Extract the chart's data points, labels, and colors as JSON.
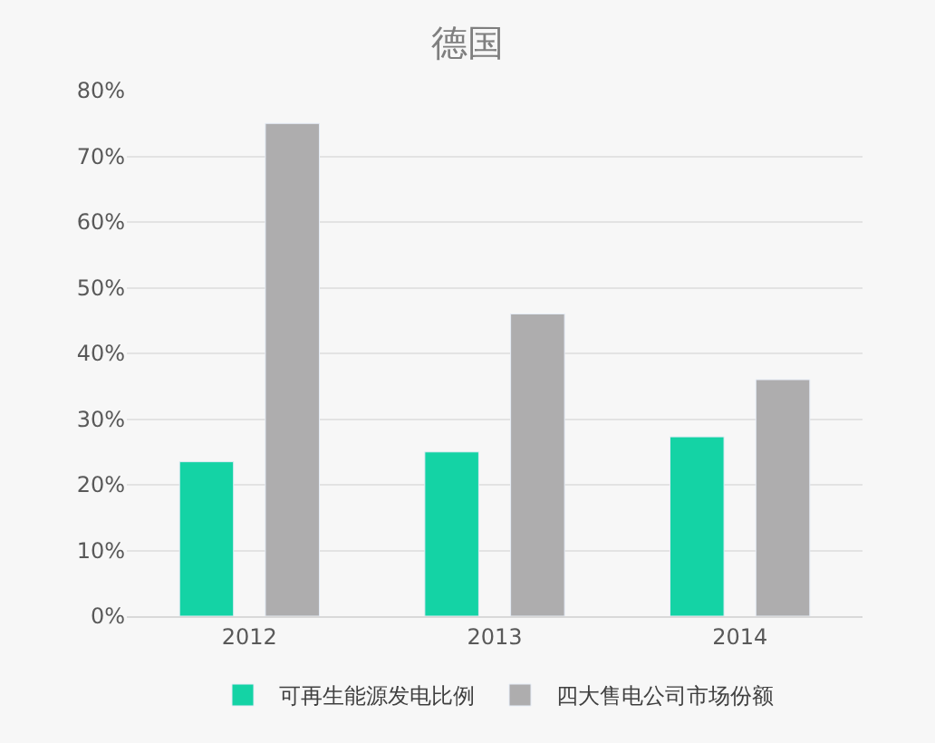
{
  "chart_data": {
    "type": "bar",
    "title": "德国",
    "categories": [
      "2012",
      "2013",
      "2014"
    ],
    "series": [
      {
        "name": "可再生能源发电比例",
        "color": "#14d3a5",
        "values": [
          23.5,
          25,
          27.3
        ]
      },
      {
        "name": "四大售电公司市场份额",
        "color": "#aeadae",
        "values": [
          75,
          46,
          36
        ]
      }
    ],
    "ylim": [
      0,
      80
    ],
    "yticks": [
      {
        "value": 0,
        "label": "0%"
      },
      {
        "value": 10,
        "label": "10%"
      },
      {
        "value": 20,
        "label": "20%"
      },
      {
        "value": 30,
        "label": "30%"
      },
      {
        "value": 40,
        "label": "40%"
      },
      {
        "value": 50,
        "label": "50%"
      },
      {
        "value": 60,
        "label": "60%"
      },
      {
        "value": 70,
        "label": "70%"
      },
      {
        "value": 80,
        "label": "80%"
      }
    ],
    "grid": "y",
    "legend": "bottom"
  }
}
